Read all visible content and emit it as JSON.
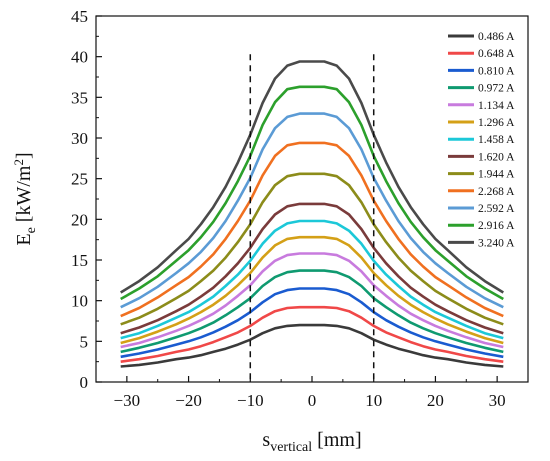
{
  "chart_data": {
    "type": "line",
    "xlabel": {
      "base": "s",
      "sub": "vertical",
      "unit": " [mm]"
    },
    "ylabel": {
      "base": "E",
      "sub": "e",
      "unit_pre": " [kW/m",
      "sup": "2",
      "unit_post": "]"
    },
    "xlim": [
      -35,
      35
    ],
    "ylim": [
      0,
      45
    ],
    "xticks": [
      -30,
      -20,
      -10,
      0,
      10,
      20,
      30
    ],
    "yticks": [
      0,
      5,
      10,
      15,
      20,
      25,
      30,
      35,
      40,
      45
    ],
    "grid": false,
    "legend_position": "top-right",
    "vlines": [
      -10,
      10
    ],
    "x": [
      -31,
      -28,
      -25,
      -22,
      -20,
      -18,
      -16,
      -14,
      -12,
      -10,
      -8,
      -6,
      -4,
      -2,
      0,
      2,
      4,
      6,
      8,
      10,
      12,
      14,
      16,
      18,
      20,
      22,
      25,
      28,
      31
    ],
    "series": [
      {
        "name": "0.486 A",
        "color": "#3a3a3a",
        "values": [
          1.9,
          2.1,
          2.4,
          2.8,
          3.0,
          3.3,
          3.7,
          4.1,
          4.6,
          5.2,
          6.0,
          6.6,
          6.9,
          7.0,
          7.0,
          7.0,
          6.9,
          6.6,
          6.0,
          5.2,
          4.6,
          4.1,
          3.7,
          3.3,
          3.0,
          2.8,
          2.4,
          2.1,
          1.9
        ]
      },
      {
        "name": "0.648 A",
        "color": "#f04848",
        "values": [
          2.5,
          2.8,
          3.2,
          3.7,
          4.0,
          4.4,
          4.9,
          5.5,
          6.1,
          6.9,
          7.9,
          8.7,
          9.1,
          9.2,
          9.2,
          9.2,
          9.1,
          8.7,
          7.9,
          6.9,
          6.1,
          5.5,
          4.9,
          4.4,
          4.0,
          3.7,
          3.2,
          2.8,
          2.5
        ]
      },
      {
        "name": "0.810 A",
        "color": "#1a5bd0",
        "values": [
          3.1,
          3.5,
          4.0,
          4.6,
          5.0,
          5.5,
          6.1,
          6.8,
          7.6,
          8.6,
          9.8,
          10.8,
          11.3,
          11.5,
          11.5,
          11.5,
          11.3,
          10.8,
          9.8,
          8.6,
          7.6,
          6.8,
          6.1,
          5.5,
          5.0,
          4.6,
          4.0,
          3.5,
          3.1
        ]
      },
      {
        "name": "0.972 A",
        "color": "#0f9a70",
        "values": [
          3.7,
          4.2,
          4.8,
          5.5,
          6.0,
          6.6,
          7.3,
          8.2,
          9.2,
          10.3,
          11.8,
          12.9,
          13.5,
          13.7,
          13.7,
          13.7,
          13.5,
          12.9,
          11.8,
          10.3,
          9.2,
          8.2,
          7.3,
          6.6,
          6.0,
          5.5,
          4.8,
          4.2,
          3.7
        ]
      },
      {
        "name": "1.134 A",
        "color": "#c87bde",
        "values": [
          4.3,
          4.8,
          5.5,
          6.3,
          6.9,
          7.6,
          8.4,
          9.4,
          10.6,
          11.9,
          13.6,
          14.9,
          15.6,
          15.8,
          15.8,
          15.8,
          15.6,
          14.9,
          13.6,
          11.9,
          10.6,
          9.4,
          8.4,
          7.6,
          6.9,
          6.3,
          5.5,
          4.8,
          4.3
        ]
      },
      {
        "name": "1.296 A",
        "color": "#d4a017",
        "values": [
          4.8,
          5.4,
          6.2,
          7.1,
          7.8,
          8.6,
          9.5,
          10.6,
          11.9,
          13.4,
          15.3,
          16.8,
          17.6,
          17.8,
          17.8,
          17.8,
          17.6,
          16.8,
          15.3,
          13.4,
          11.9,
          10.6,
          9.5,
          8.6,
          7.8,
          7.1,
          6.2,
          5.4,
          4.8
        ]
      },
      {
        "name": "1.458 A",
        "color": "#1cc8d8",
        "values": [
          5.4,
          6.0,
          6.9,
          7.9,
          8.6,
          9.5,
          10.5,
          11.8,
          13.2,
          14.9,
          17.0,
          18.6,
          19.5,
          19.8,
          19.8,
          19.8,
          19.5,
          18.6,
          17.0,
          14.9,
          13.2,
          11.8,
          10.5,
          9.5,
          8.6,
          7.9,
          6.9,
          6.0,
          5.4
        ]
      },
      {
        "name": "1.620 A",
        "color": "#7a3b3b",
        "values": [
          6.0,
          6.7,
          7.6,
          8.7,
          9.5,
          10.5,
          11.6,
          13.0,
          14.6,
          16.5,
          18.8,
          20.6,
          21.6,
          21.9,
          21.9,
          21.9,
          21.6,
          20.6,
          18.8,
          16.5,
          14.6,
          13.0,
          11.6,
          10.5,
          9.5,
          8.7,
          7.6,
          6.7,
          6.0
        ]
      },
      {
        "name": "1.944 A",
        "color": "#8c8c1a",
        "values": [
          7.1,
          7.9,
          9.0,
          10.3,
          11.2,
          12.4,
          13.7,
          15.3,
          17.2,
          19.4,
          22.1,
          24.2,
          25.3,
          25.6,
          25.6,
          25.6,
          25.3,
          24.2,
          22.1,
          19.4,
          17.2,
          15.3,
          13.7,
          12.4,
          11.2,
          10.3,
          9.0,
          7.9,
          7.1
        ]
      },
      {
        "name": "2.268 A",
        "color": "#f07020",
        "values": [
          8.1,
          9.1,
          10.4,
          11.9,
          12.9,
          14.2,
          15.7,
          17.6,
          19.8,
          22.3,
          25.4,
          27.8,
          29.1,
          29.4,
          29.4,
          29.4,
          29.1,
          27.8,
          25.4,
          22.3,
          19.8,
          17.6,
          15.7,
          14.2,
          12.9,
          11.9,
          10.4,
          9.1,
          8.1
        ]
      },
      {
        "name": "2.592 A",
        "color": "#5b9bd5",
        "values": [
          9.2,
          10.3,
          11.7,
          13.4,
          14.6,
          16.0,
          17.7,
          19.8,
          22.3,
          25.1,
          28.6,
          31.2,
          32.6,
          33.0,
          33.0,
          33.0,
          32.6,
          31.2,
          28.6,
          25.1,
          22.3,
          19.8,
          17.7,
          16.0,
          14.6,
          13.4,
          11.7,
          10.3,
          9.2
        ]
      },
      {
        "name": "2.916 A",
        "color": "#2ca02c",
        "values": [
          10.2,
          11.5,
          13.0,
          14.9,
          16.2,
          17.8,
          19.7,
          22.0,
          24.7,
          27.8,
          31.6,
          34.4,
          36.0,
          36.3,
          36.3,
          36.3,
          36.0,
          34.4,
          31.6,
          27.8,
          24.7,
          22.0,
          19.7,
          17.8,
          16.2,
          14.9,
          13.0,
          11.5,
          10.2
        ]
      },
      {
        "name": "3.240 A",
        "color": "#4a4a4a",
        "values": [
          11.0,
          12.4,
          14.1,
          16.2,
          17.6,
          19.4,
          21.5,
          24.0,
          27.0,
          30.4,
          34.3,
          37.3,
          38.9,
          39.4,
          39.4,
          39.4,
          38.9,
          37.3,
          34.3,
          30.4,
          27.0,
          24.0,
          21.5,
          19.4,
          17.6,
          16.2,
          14.1,
          12.4,
          11.0
        ]
      }
    ]
  }
}
